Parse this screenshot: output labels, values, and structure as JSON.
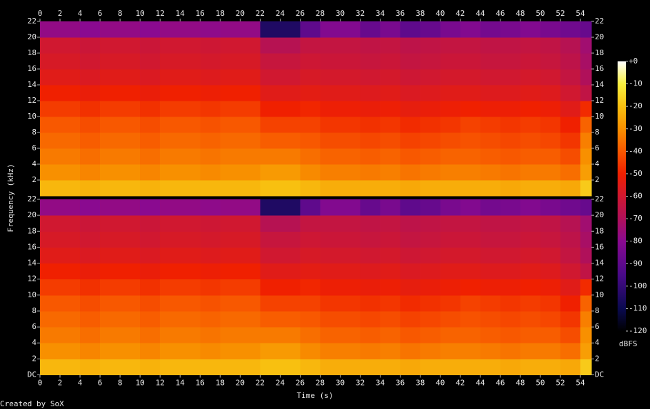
{
  "chart_data": [
    {
      "type": "heatmap",
      "ylabel": "Frequency (kHz)",
      "x_bins": [
        0,
        2,
        4,
        6,
        8,
        10,
        12,
        14,
        16,
        18,
        20,
        22,
        24,
        26,
        28,
        30,
        32,
        34,
        36,
        38,
        40,
        42,
        44,
        46,
        48,
        50,
        52,
        54,
        55.1
      ],
      "y_bins": [
        0,
        2,
        4,
        6,
        8,
        10,
        12,
        14,
        16,
        18,
        20,
        22
      ],
      "xlim": [
        0,
        55.1
      ],
      "ylim": [
        0,
        22
      ],
      "xticks": [
        0,
        2,
        4,
        6,
        8,
        10,
        12,
        14,
        16,
        18,
        20,
        22,
        24,
        26,
        28,
        30,
        32,
        34,
        36,
        38,
        40,
        42,
        44,
        46,
        48,
        50,
        52,
        54
      ],
      "yticks": [
        2,
        4,
        6,
        8,
        10,
        12,
        14,
        16,
        18,
        20,
        22
      ],
      "z": [
        [
          -22,
          -22,
          -23,
          -22,
          -22,
          -23,
          -22,
          -22,
          -22,
          -22,
          -22,
          -20,
          -20,
          -22,
          -24,
          -24,
          -24,
          -24,
          -25,
          -24,
          -24,
          -24,
          -24,
          -25,
          -24,
          -24,
          -25,
          -18
        ],
        [
          -30,
          -30,
          -32,
          -30,
          -30,
          -32,
          -30,
          -30,
          -31,
          -30,
          -30,
          -28,
          -28,
          -31,
          -33,
          -33,
          -34,
          -33,
          -35,
          -34,
          -33,
          -33,
          -34,
          -35,
          -34,
          -34,
          -36,
          -27
        ],
        [
          -34,
          -34,
          -36,
          -34,
          -34,
          -36,
          -34,
          -34,
          -35,
          -34,
          -34,
          -34,
          -34,
          -36,
          -38,
          -38,
          -39,
          -38,
          -40,
          -39,
          -38,
          -38,
          -39,
          -40,
          -39,
          -39,
          -42,
          -30
        ],
        [
          -37,
          -37,
          -39,
          -37,
          -37,
          -39,
          -37,
          -37,
          -38,
          -37,
          -37,
          -39,
          -39,
          -40,
          -42,
          -42,
          -43,
          -42,
          -44,
          -43,
          -42,
          -41,
          -42,
          -43,
          -42,
          -43,
          -46,
          -33
        ],
        [
          -40,
          -40,
          -42,
          -40,
          -40,
          -42,
          -40,
          -40,
          -41,
          -40,
          -40,
          -44,
          -44,
          -44,
          -46,
          -46,
          -47,
          -46,
          -48,
          -47,
          -46,
          -44,
          -45,
          -46,
          -45,
          -46,
          -50,
          -38
        ],
        [
          -45,
          -45,
          -47,
          -45,
          -45,
          -47,
          -45,
          -45,
          -46,
          -45,
          -45,
          -50,
          -50,
          -49,
          -51,
          -51,
          -52,
          -51,
          -53,
          -52,
          -51,
          -50,
          -51,
          -51,
          -50,
          -51,
          -55,
          -48
        ],
        [
          -50,
          -50,
          -52,
          -50,
          -50,
          -52,
          -50,
          -50,
          -51,
          -50,
          -50,
          -55,
          -55,
          -54,
          -55,
          -55,
          -56,
          -55,
          -57,
          -56,
          -55,
          -55,
          -56,
          -56,
          -55,
          -56,
          -60,
          -65
        ],
        [
          -55,
          -55,
          -57,
          -55,
          -55,
          -57,
          -55,
          -55,
          -56,
          -55,
          -55,
          -60,
          -60,
          -58,
          -59,
          -59,
          -60,
          -59,
          -61,
          -60,
          -59,
          -59,
          -60,
          -60,
          -59,
          -60,
          -64,
          -70
        ],
        [
          -58,
          -58,
          -60,
          -58,
          -58,
          -60,
          -58,
          -58,
          -59,
          -58,
          -58,
          -63,
          -63,
          -61,
          -62,
          -62,
          -63,
          -62,
          -64,
          -63,
          -62,
          -62,
          -63,
          -63,
          -62,
          -63,
          -66,
          -72
        ],
        [
          -60,
          -60,
          -62,
          -60,
          -60,
          -62,
          -60,
          -60,
          -61,
          -60,
          -60,
          -68,
          -68,
          -64,
          -64,
          -64,
          -65,
          -64,
          -66,
          -65,
          -64,
          -64,
          -65,
          -65,
          -64,
          -65,
          -68,
          -74
        ],
        [
          -78,
          -78,
          -80,
          -78,
          -78,
          -80,
          -78,
          -78,
          -79,
          -78,
          -78,
          -105,
          -105,
          -90,
          -82,
          -82,
          -88,
          -84,
          -90,
          -88,
          -84,
          -82,
          -85,
          -84,
          -82,
          -84,
          -86,
          -88
        ]
      ]
    },
    {
      "type": "heatmap",
      "xlabel": "Time (s)",
      "x_bins": [
        0,
        2,
        4,
        6,
        8,
        10,
        12,
        14,
        16,
        18,
        20,
        22,
        24,
        26,
        28,
        30,
        32,
        34,
        36,
        38,
        40,
        42,
        44,
        46,
        48,
        50,
        52,
        54,
        55.1
      ],
      "y_bins": [
        0,
        2,
        4,
        6,
        8,
        10,
        12,
        14,
        16,
        18,
        20,
        22
      ],
      "xlim": [
        0,
        55.1
      ],
      "ylim": [
        0,
        22
      ],
      "xticks": [
        0,
        2,
        4,
        6,
        8,
        10,
        12,
        14,
        16,
        18,
        20,
        22,
        24,
        26,
        28,
        30,
        32,
        34,
        36,
        38,
        40,
        42,
        44,
        46,
        48,
        50,
        52,
        54
      ],
      "yticks": [
        {
          "value": 0,
          "label": "DC"
        },
        2,
        4,
        6,
        8,
        10,
        12,
        14,
        16,
        18,
        20,
        22
      ],
      "z": [
        [
          -22,
          -22,
          -23,
          -22,
          -22,
          -23,
          -22,
          -22,
          -22,
          -22,
          -22,
          -20,
          -20,
          -22,
          -24,
          -24,
          -24,
          -24,
          -25,
          -24,
          -24,
          -24,
          -24,
          -25,
          -24,
          -24,
          -25,
          -18
        ],
        [
          -30,
          -30,
          -32,
          -30,
          -30,
          -32,
          -30,
          -30,
          -31,
          -30,
          -30,
          -28,
          -28,
          -31,
          -33,
          -33,
          -34,
          -33,
          -35,
          -34,
          -33,
          -33,
          -34,
          -35,
          -34,
          -34,
          -36,
          -27
        ],
        [
          -34,
          -34,
          -36,
          -34,
          -34,
          -36,
          -34,
          -34,
          -35,
          -34,
          -34,
          -34,
          -34,
          -36,
          -38,
          -38,
          -39,
          -38,
          -40,
          -39,
          -38,
          -38,
          -39,
          -40,
          -39,
          -39,
          -42,
          -30
        ],
        [
          -37,
          -37,
          -39,
          -37,
          -37,
          -39,
          -37,
          -37,
          -38,
          -37,
          -37,
          -39,
          -39,
          -40,
          -42,
          -42,
          -43,
          -42,
          -44,
          -43,
          -42,
          -41,
          -42,
          -43,
          -42,
          -43,
          -46,
          -33
        ],
        [
          -40,
          -40,
          -42,
          -40,
          -40,
          -42,
          -40,
          -40,
          -41,
          -40,
          -40,
          -44,
          -44,
          -44,
          -46,
          -46,
          -47,
          -46,
          -48,
          -47,
          -46,
          -44,
          -45,
          -46,
          -45,
          -46,
          -50,
          -38
        ],
        [
          -45,
          -45,
          -47,
          -45,
          -45,
          -47,
          -45,
          -45,
          -46,
          -45,
          -45,
          -50,
          -50,
          -49,
          -51,
          -51,
          -52,
          -51,
          -53,
          -52,
          -51,
          -50,
          -51,
          -51,
          -50,
          -51,
          -55,
          -48
        ],
        [
          -50,
          -50,
          -52,
          -50,
          -50,
          -52,
          -50,
          -50,
          -51,
          -50,
          -50,
          -55,
          -55,
          -54,
          -55,
          -55,
          -56,
          -55,
          -57,
          -56,
          -55,
          -55,
          -56,
          -56,
          -55,
          -56,
          -60,
          -65
        ],
        [
          -55,
          -55,
          -57,
          -55,
          -55,
          -57,
          -55,
          -55,
          -56,
          -55,
          -55,
          -60,
          -60,
          -58,
          -59,
          -59,
          -60,
          -59,
          -61,
          -60,
          -59,
          -59,
          -60,
          -60,
          -59,
          -60,
          -64,
          -70
        ],
        [
          -58,
          -58,
          -60,
          -58,
          -58,
          -60,
          -58,
          -58,
          -59,
          -58,
          -58,
          -63,
          -63,
          -61,
          -62,
          -62,
          -63,
          -62,
          -64,
          -63,
          -62,
          -62,
          -63,
          -63,
          -62,
          -63,
          -66,
          -72
        ],
        [
          -60,
          -60,
          -62,
          -60,
          -60,
          -62,
          -60,
          -60,
          -61,
          -60,
          -60,
          -68,
          -68,
          -64,
          -64,
          -64,
          -65,
          -64,
          -66,
          -65,
          -64,
          -64,
          -65,
          -65,
          -64,
          -65,
          -68,
          -74
        ],
        [
          -78,
          -78,
          -80,
          -78,
          -78,
          -80,
          -78,
          -78,
          -79,
          -78,
          -78,
          -105,
          -105,
          -90,
          -82,
          -82,
          -88,
          -84,
          -90,
          -88,
          -84,
          -82,
          -85,
          -84,
          -82,
          -84,
          -86,
          -88
        ]
      ],
      "colorbar": {
        "label": "dBFS",
        "clim": [
          -120,
          0
        ],
        "ticks": [
          {
            "value": 0,
            "label": "+0"
          },
          -10,
          -20,
          -30,
          -40,
          -50,
          -60,
          -70,
          -80,
          -90,
          -100,
          -110,
          -120
        ]
      }
    }
  ],
  "footer": "Created by SoX"
}
